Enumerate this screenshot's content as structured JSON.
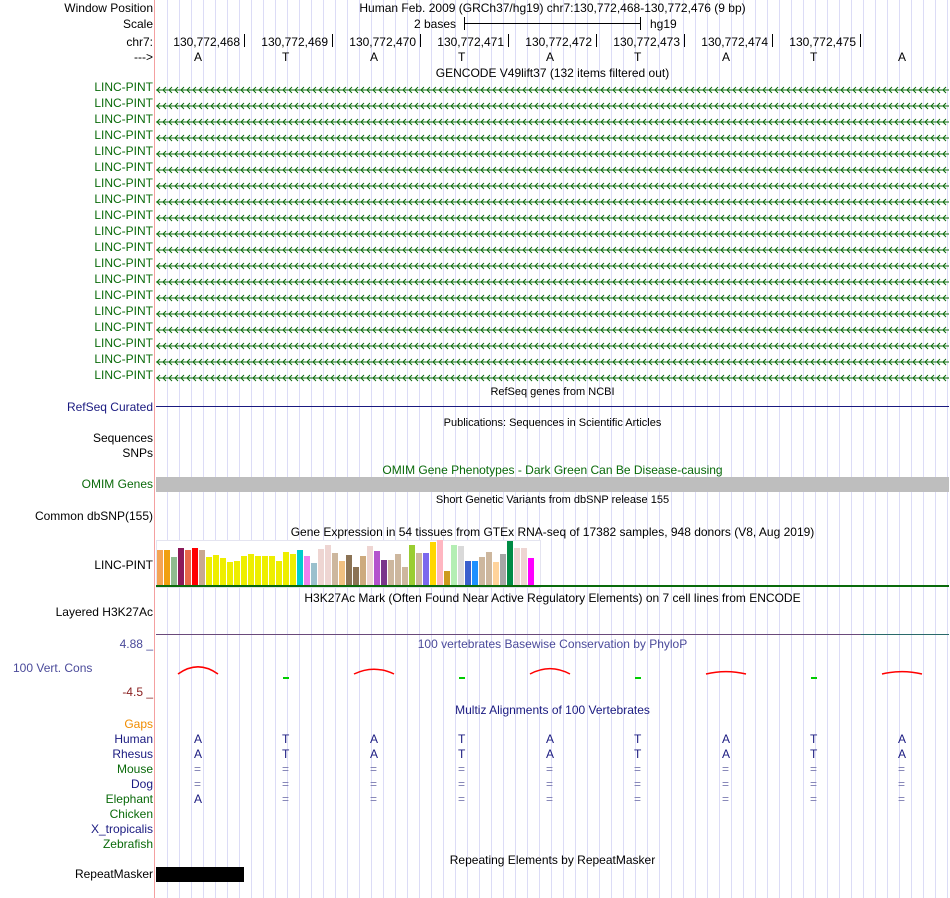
{
  "header": {
    "window_label": "Window Position",
    "window_text": "Human Feb. 2009 (GRCh37/hg19)   chr7:130,772,468-130,772,476 (9 bp)",
    "scale_label": "Scale",
    "scale_text": "2 bases",
    "scale_db": "hg19",
    "chr_label": "chr7:",
    "strand_label": "--->"
  },
  "positions": [
    "130,772,468",
    "130,772,469",
    "130,772,470",
    "130,772,471",
    "130,772,472",
    "130,772,473",
    "130,772,474",
    "130,772,475"
  ],
  "bases": [
    "A",
    "T",
    "A",
    "T",
    "A",
    "T",
    "A",
    "T",
    "A"
  ],
  "gencode": {
    "title": "GENCODE V49lift37 (132 items filtered out)",
    "genes": [
      "LINC-PINT",
      "LINC-PINT",
      "LINC-PINT",
      "LINC-PINT",
      "LINC-PINT",
      "LINC-PINT",
      "LINC-PINT",
      "LINC-PINT",
      "LINC-PINT",
      "LINC-PINT",
      "LINC-PINT",
      "LINC-PINT",
      "LINC-PINT",
      "LINC-PINT",
      "LINC-PINT",
      "LINC-PINT",
      "LINC-PINT",
      "LINC-PINT",
      "LINC-PINT"
    ]
  },
  "refseq": {
    "title": "RefSeq genes from NCBI",
    "label": "RefSeq Curated"
  },
  "pubs": {
    "title": "Publications: Sequences in Scientific Articles",
    "label1": "Sequences",
    "label2": "SNPs"
  },
  "omim": {
    "title": "OMIM Gene Phenotypes - Dark Green Can Be Disease-causing",
    "label": "OMIM Genes"
  },
  "dbsnp": {
    "title": "Short Genetic Variants from dbSNP release 155",
    "label": "Common dbSNP(155)"
  },
  "gtex": {
    "title": "Gene Expression in 54 tissues from GTEx RNA-seq of 17382 samples, 948 donors (V8, Aug 2019)",
    "label": "LINC-PINT",
    "values": [
      35,
      35,
      28,
      37,
      35,
      37,
      35,
      28,
      30,
      27,
      23,
      24,
      29,
      31,
      29,
      29,
      29,
      24,
      33,
      31,
      35,
      29,
      22,
      36,
      40,
      32,
      24,
      30,
      18,
      29,
      39,
      34,
      25,
      25,
      31,
      18,
      40,
      32,
      32,
      43,
      45,
      14,
      40,
      39,
      24,
      24,
      28,
      33,
      23,
      31,
      44,
      37,
      37,
      27
    ],
    "colors": [
      "#f4a455",
      "#f0a010",
      "#8fbc8f",
      "#8b1a5a",
      "#e8684a",
      "#ff0000",
      "#c8a890",
      "#eeee00",
      "#eeee00",
      "#eeee00",
      "#eeee00",
      "#eeee00",
      "#eeee00",
      "#eeee00",
      "#eeee00",
      "#eeee00",
      "#eeee00",
      "#eeee00",
      "#eeee00",
      "#eeee00",
      "#00cdcd",
      "#ee82ee",
      "#9ac0cd",
      "#eed5d2",
      "#eed5d2",
      "#cdb79e",
      "#f0c080",
      "#8b7355",
      "#8b7355",
      "#cdaa7d",
      "#eed5d2",
      "#b452cd",
      "#7a378b",
      "#cdb79e",
      "#cdb79e",
      "#cdb79e",
      "#9acd32",
      "#cdb79e",
      "#7b68ee",
      "#ffd700",
      "#ffb6c1",
      "#cd9b1d",
      "#b4eeb4",
      "#d9d9d9",
      "#3a5fcd",
      "#1e90ff",
      "#cdb79e",
      "#cdb79e",
      "#ffd39b",
      "#a6a6a6",
      "#008b45",
      "#eed5d2",
      "#eed5d2",
      "#ff00ff"
    ]
  },
  "h3k27ac": {
    "title": "H3K27Ac Mark (Often Found Near Active Regulatory Elements) on 7 cell lines from ENCODE",
    "label": "Layered H3K27Ac"
  },
  "cons": {
    "title": "100 vertebrates Basewise Conservation by PhyloP",
    "label": "100 Vert. Cons",
    "ymax": "4.88 _",
    "ymin": "-4.5 _",
    "scores": [
      1.2,
      -0.3,
      0.8,
      -0.1,
      0.9,
      -0.1,
      0.4,
      -0.1,
      0.4
    ]
  },
  "multiz": {
    "title": "Multiz Alignments of 100 Vertebrates",
    "gaps_label": "Gaps",
    "species": [
      {
        "name": "Human",
        "seq": [
          "A",
          "T",
          "A",
          "T",
          "A",
          "T",
          "A",
          "T",
          "A"
        ]
      },
      {
        "name": "Rhesus",
        "seq": [
          "A",
          "T",
          "A",
          "T",
          "A",
          "T",
          "A",
          "T",
          "A"
        ]
      },
      {
        "name": "Mouse",
        "seq": [
          "=",
          "=",
          "=",
          "=",
          "=",
          "=",
          "=",
          "=",
          "="
        ]
      },
      {
        "name": "Dog",
        "seq": [
          "=",
          "=",
          "=",
          "=",
          "=",
          "=",
          "=",
          "=",
          "="
        ]
      },
      {
        "name": "Elephant",
        "seq": [
          "A",
          "=",
          "=",
          "=",
          "=",
          "=",
          "=",
          "=",
          "="
        ]
      },
      {
        "name": "Chicken",
        "seq": []
      },
      {
        "name": "X_tropicalis",
        "seq": []
      },
      {
        "name": "Zebrafish",
        "seq": []
      }
    ]
  },
  "repeat": {
    "title": "Repeating Elements by RepeatMasker",
    "label": "RepeatMasker"
  },
  "colors": {
    "gene": "#0a6a0a",
    "navy": "#1a1a80",
    "omim_bar": "#bebebe",
    "cons_pos": "#ff0000",
    "cons_neg": "#00cc00"
  }
}
